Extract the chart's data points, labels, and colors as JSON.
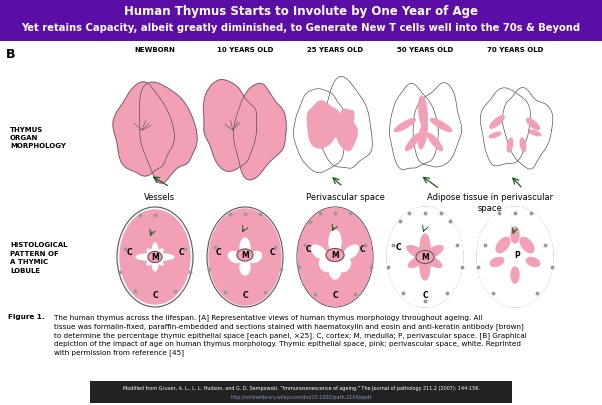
{
  "title_line1": "Human Thymus Starts to Involute by One Year of Age",
  "title_line2": "Yet retains Capacity, albeit greatly diminished, to Generate New T cells well into the 70s & Beyond",
  "title_bg": "#5B0EA6",
  "title_color": "#FFFFFF",
  "panel_label": "B",
  "age_labels": [
    "NEWBORN",
    "10 YEARS OLD",
    "25 YEARS OLD",
    "50 YEARS OLD",
    "70 YEARS OLD"
  ],
  "pink_fill": "#F2A0B5",
  "white_fill": "#FFFFFF",
  "outline_color": "#555555",
  "bg_color": "#FFFFFF",
  "source_bg": "#222222",
  "source_color": "#FFFFFF",
  "source_link_color": "#8899CC"
}
